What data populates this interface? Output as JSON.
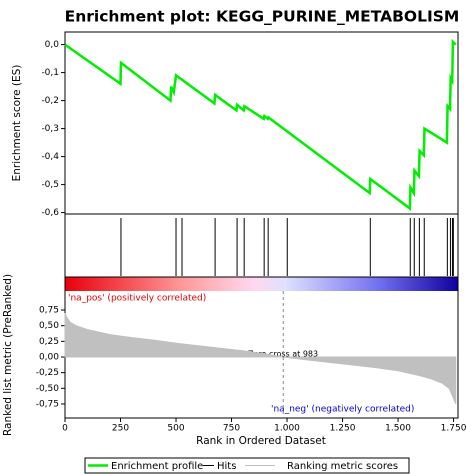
{
  "chart_data": [
    {
      "type": "line",
      "title": "Enrichment plot: KEGG_PURINE_METABOLISM",
      "ylabel": "Enrichment score (ES)",
      "x": [
        0,
        250,
        252,
        475,
        478,
        490,
        500,
        673,
        676,
        772,
        775,
        805,
        808,
        895,
        898,
        913,
        916,
        1372,
        1375,
        1553,
        1556,
        1571,
        1574,
        1594,
        1597,
        1616,
        1619,
        1720,
        1723,
        1734,
        1737,
        1744,
        1747,
        1760
      ],
      "series": [
        {
          "name": "Enrichment profile",
          "color": "#00ee00",
          "values": [
            0,
            -0.14,
            -0.065,
            -0.2,
            -0.15,
            -0.17,
            -0.11,
            -0.21,
            -0.18,
            -0.235,
            -0.215,
            -0.235,
            -0.22,
            -0.265,
            -0.255,
            -0.265,
            -0.26,
            -0.53,
            -0.48,
            -0.585,
            -0.51,
            -0.53,
            -0.45,
            -0.47,
            -0.38,
            -0.395,
            -0.3,
            -0.35,
            -0.22,
            -0.23,
            -0.12,
            -0.13,
            0.01,
            0.0
          ]
        }
      ],
      "xlim": [
        0,
        1770
      ],
      "ylim": [
        -0.605,
        0.045
      ],
      "yticks": [
        {
          "value": 0,
          "label": "0,0"
        },
        {
          "value": -0.1,
          "label": "-0,1"
        },
        {
          "value": -0.2,
          "label": "-0,2"
        },
        {
          "value": -0.3,
          "label": "-0,3"
        },
        {
          "value": -0.4,
          "label": "-0,4"
        },
        {
          "value": -0.5,
          "label": "-0,5"
        },
        {
          "value": -0.6,
          "label": "-0,6"
        }
      ]
    },
    {
      "type": "rug",
      "x": [
        252,
        500,
        527,
        676,
        775,
        807,
        897,
        915,
        1001,
        1375,
        1555,
        1573,
        1596,
        1618,
        1722,
        1736,
        1745,
        1749
      ],
      "series": [
        {
          "name": "Hits",
          "color": "#000000"
        }
      ],
      "xlim": [
        0,
        1770
      ]
    },
    {
      "type": "area",
      "ylabel": "Ranked list metric (PreRanked)",
      "xlabel": "Rank in Ordered Dataset",
      "x": [
        0,
        10,
        25,
        50,
        100,
        200,
        300,
        400,
        500,
        600,
        700,
        800,
        900,
        983,
        1100,
        1200,
        1300,
        1400,
        1500,
        1600,
        1650,
        1700,
        1730,
        1760
      ],
      "series": [
        {
          "name": "Ranking metric scores",
          "color": "#c0c0c0",
          "values": [
            0.7,
            0.62,
            0.55,
            0.5,
            0.44,
            0.36,
            0.31,
            0.27,
            0.22,
            0.18,
            0.14,
            0.1,
            0.05,
            0,
            -0.05,
            -0.09,
            -0.13,
            -0.17,
            -0.22,
            -0.3,
            -0.35,
            -0.42,
            -0.5,
            -0.75
          ]
        }
      ],
      "xlim": [
        0,
        1770
      ],
      "ylim": [
        -0.974,
        1.054
      ],
      "xticks": [
        0,
        250,
        500,
        750,
        {
          "value": 1000,
          "label": "1.000"
        },
        {
          "value": 1250,
          "label": "1.250"
        },
        {
          "value": 1500,
          "label": "1.500"
        },
        {
          "value": 1750,
          "label": "1.750"
        }
      ],
      "yticks": [
        {
          "value": 0.75,
          "label": "0,75"
        },
        {
          "value": 0.5,
          "label": "0,50"
        },
        {
          "value": 0.25,
          "label": "0,25"
        },
        {
          "value": 0,
          "label": "0,00"
        },
        {
          "value": -0.25,
          "label": "-0,25"
        },
        {
          "value": -0.5,
          "label": "-0,50"
        },
        {
          "value": -0.75,
          "label": "-0,75"
        }
      ],
      "zero_cross": 983,
      "annotations": [
        "'na_pos' (positively correlated)",
        "'na_neg' (negatively correlated)",
        "Zero cross at 983"
      ]
    }
  ]
}
